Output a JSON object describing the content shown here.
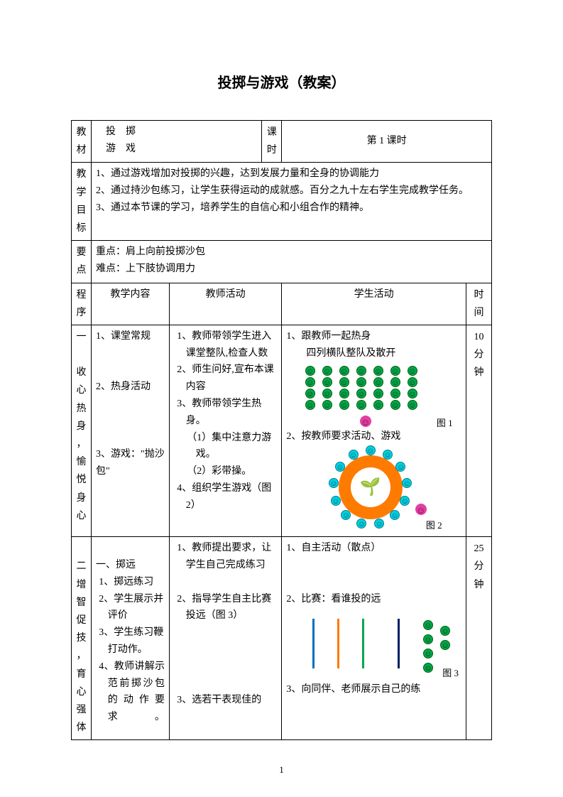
{
  "title": "投掷与游戏（教案）",
  "header": {
    "material_label": "教材",
    "material_value": "　投　掷\n　游　戏",
    "period_label": "课时",
    "period_value": "第 1 课时"
  },
  "objectives": {
    "label": "教学目标",
    "lines": [
      "1、通过游戏增加对投掷的兴趣，达到发展力量和全身的协调能力",
      "2、通过持沙包练习，让学生获得运动的成就感。百分之九十左右学生完成教学任务。",
      "3、通过本节课的学习，培养学生的自信心和小组合作的精神。"
    ]
  },
  "keypoints": {
    "label": "要点",
    "focus": "重点：肩上向前投掷沙包",
    "difficulty": "难点：上下肢协调用力"
  },
  "columns": {
    "procedure": "程序",
    "content": "教学内容",
    "teacher": "教师活动",
    "student": "学生活动",
    "time": "时间"
  },
  "row1": {
    "procedure": "一收心热身，愉悦身心",
    "content": [
      "1、课堂常规",
      "",
      "",
      "2、热身活动",
      "",
      "",
      "",
      "3、游戏：\"抛沙包\""
    ],
    "teacher": [
      "1、教师带领学生进入课堂整队,检查人数",
      "2、师生问好,宣布本课内容",
      "3、教师带领学生热身。",
      "（1）集中注意力游戏。",
      "（2）彩带操。",
      "4、组织学生游戏（图 2）"
    ],
    "student_top": "1、跟教师一起热身\n　　四列横队整队及散开",
    "student_mid": "2、按教师要求活动、游戏",
    "fig1_label": "图 1",
    "fig2_label": "图 2",
    "time": "10分钟"
  },
  "row2": {
    "procedure": "二增智促技，育心强体",
    "content": [
      "一、掷远",
      "1、掷远练习",
      "2、学生展示并评价",
      "3、学生练习鞭打动作。",
      "4、教师讲解示范前掷沙包的动作要求。"
    ],
    "teacher": [
      "1、教师提出要求，让学生自己完成练习",
      "",
      "2、指导学生自主比赛投远（图 3）",
      "",
      "",
      "",
      "3、选若干表现佳的"
    ],
    "student_top": "1、自主活动（散点）",
    "student_mid": "2、比赛：看谁投的远",
    "student_bottom": "3、向同伴、老师展示自己的练",
    "fig3_label": "图 3",
    "time": "25分钟"
  },
  "fig3_line_colors": [
    "#0070c0",
    "#ff7a00",
    "#00a650",
    "#002060"
  ],
  "page_number": "1"
}
